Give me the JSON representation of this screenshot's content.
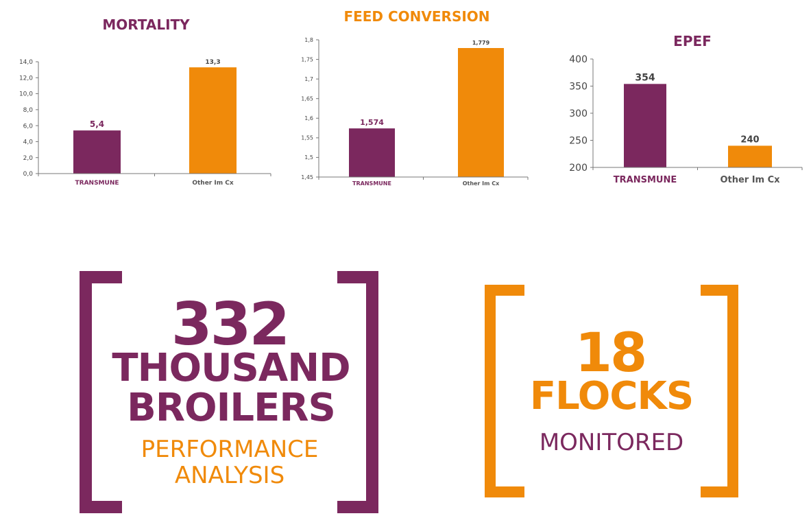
{
  "colors": {
    "purple": "#7b285e",
    "orange": "#f08a0a",
    "axis": "#777777",
    "tick_text": "#444444"
  },
  "chart_data": [
    {
      "type": "bar",
      "title": "MORTALITY",
      "categories": [
        "TRANSMUNE",
        "Other Im Cx"
      ],
      "values": [
        5.4,
        13.3
      ],
      "value_labels": [
        "5,4",
        "13,3"
      ],
      "ylim": [
        0,
        14
      ],
      "yticks": [
        0,
        2,
        4,
        6,
        8,
        10,
        12,
        14
      ],
      "ytick_labels": [
        "0,0",
        "2,0",
        "4,0",
        "6,0",
        "8,0",
        "10,0",
        "12,0",
        "14,0"
      ],
      "xlabel": "",
      "ylabel": "",
      "grid": false
    },
    {
      "type": "bar",
      "title": "FEED CONVERSION",
      "categories": [
        "TRANSMUNE",
        "Other Im Cx"
      ],
      "values": [
        1.574,
        1.779
      ],
      "value_labels": [
        "1,574",
        "1,779"
      ],
      "ylim": [
        1.45,
        1.8
      ],
      "yticks": [
        1.45,
        1.5,
        1.55,
        1.6,
        1.65,
        1.7,
        1.75,
        1.8
      ],
      "ytick_labels": [
        "1,45",
        "1,5",
        "1,55",
        "1,6",
        "1,65",
        "1,7",
        "1,75",
        "1,8"
      ],
      "xlabel": "",
      "ylabel": "",
      "grid": false
    },
    {
      "type": "bar",
      "title": "EPEF",
      "categories": [
        "TRANSMUNE",
        "Other Im Cx"
      ],
      "values": [
        354,
        240
      ],
      "value_labels": [
        "354",
        "240"
      ],
      "ylim": [
        200,
        400
      ],
      "yticks": [
        200,
        250,
        300,
        350,
        400
      ],
      "ytick_labels": [
        "200",
        "250",
        "300",
        "350",
        "400"
      ],
      "xlabel": "",
      "ylabel": "",
      "grid": false
    }
  ],
  "stats": {
    "broilers": {
      "number": "332",
      "line1": "THOUSAND",
      "line2": "BROILERS",
      "sub1": "PERFORMANCE",
      "sub2": "ANALYSIS"
    },
    "flocks": {
      "number": "18",
      "line1": "FLOCKS",
      "sub1": "MONITORED"
    }
  }
}
